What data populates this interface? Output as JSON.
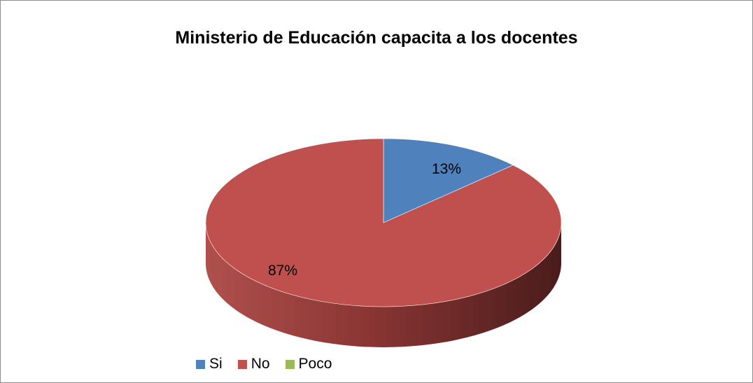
{
  "chart_data": {
    "type": "pie",
    "title": "Ministerio de Educación capacita a los docentes",
    "categories": [
      "Si",
      "No",
      "Poco"
    ],
    "values": [
      13,
      87,
      0
    ],
    "labels": [
      "13%",
      "87%",
      ""
    ],
    "colors": [
      "#4f81bd",
      "#c0504d",
      "#9bbb59"
    ],
    "side_colors": [
      "#3a5f8c",
      "#8c3a38",
      "#728a40"
    ],
    "legend_position": "bottom-left",
    "three_d": true
  }
}
